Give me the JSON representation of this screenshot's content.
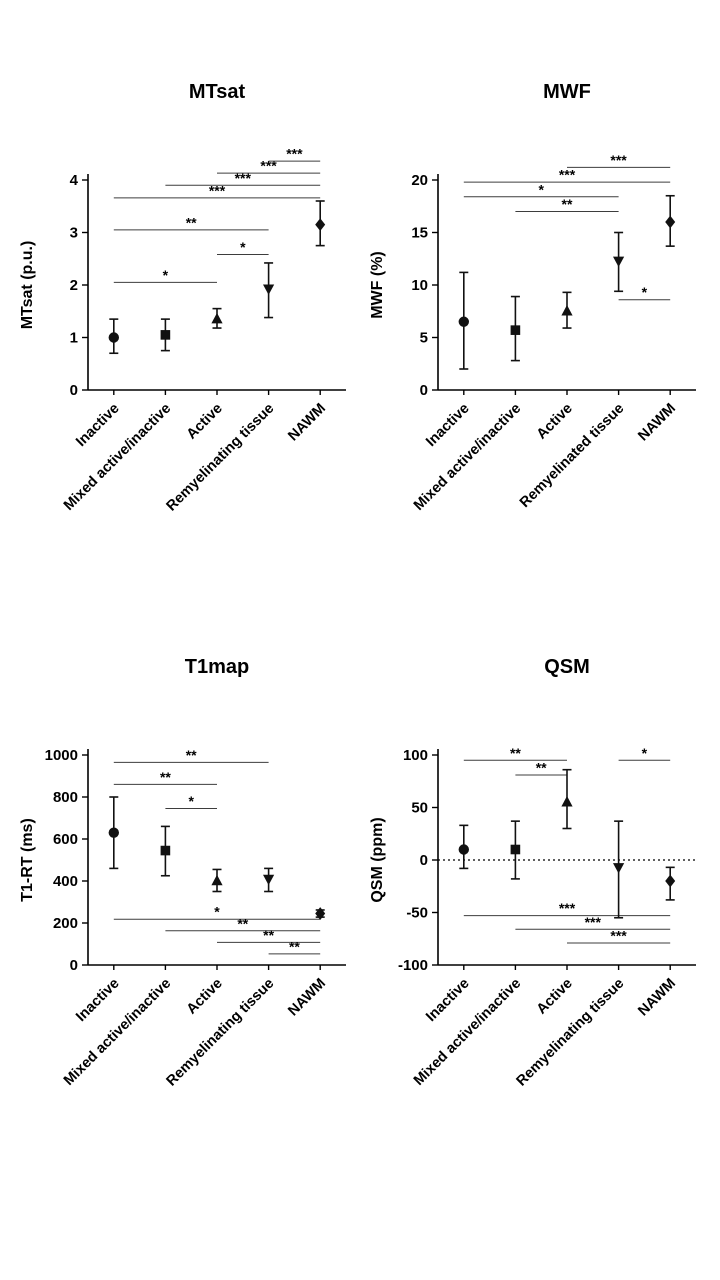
{
  "figure": {
    "background": "#ffffff",
    "marker_color": "#111111",
    "axis_color": "#000000",
    "bracket_color": "#3d3d3d"
  },
  "chart_data": [
    {
      "type": "scatter",
      "title": "MTsat",
      "ylabel": "MTsat (p.u.)",
      "ylim": [
        0,
        4
      ],
      "yticks": [
        0,
        1,
        2,
        3,
        4
      ],
      "grid": false,
      "zero_line": false,
      "categories": [
        "Inactive",
        "Mixed active/inactive",
        "Active",
        "Remyelinating tissue",
        "NAWM"
      ],
      "points": [
        {
          "category": "Inactive",
          "marker": "circle",
          "mean": 1.0,
          "lo": 0.7,
          "hi": 1.35
        },
        {
          "category": "Mixed active/inactive",
          "marker": "square",
          "mean": 1.05,
          "lo": 0.75,
          "hi": 1.35
        },
        {
          "category": "Active",
          "marker": "triangle-up",
          "mean": 1.35,
          "lo": 1.18,
          "hi": 1.55
        },
        {
          "category": "Remyelinating tissue",
          "marker": "triangle-down",
          "mean": 1.93,
          "lo": 1.38,
          "hi": 2.42
        },
        {
          "category": "NAWM",
          "marker": "diamond",
          "mean": 3.15,
          "lo": 2.75,
          "hi": 3.6
        }
      ],
      "brackets": [
        {
          "from": 0,
          "to": 2,
          "label": "*",
          "y": 2.05
        },
        {
          "from": 2,
          "to": 3,
          "label": "*",
          "y": 2.58
        },
        {
          "from": 0,
          "to": 3,
          "label": "**",
          "y": 3.05
        },
        {
          "from": 0,
          "to": 4,
          "label": "***",
          "y": 3.66
        },
        {
          "from": 1,
          "to": 4,
          "label": "***",
          "y": 3.9
        },
        {
          "from": 2,
          "to": 4,
          "label": "***",
          "y": 4.13
        },
        {
          "from": 3,
          "to": 4,
          "label": "***",
          "y": 4.36
        }
      ]
    },
    {
      "type": "scatter",
      "title": "MWF",
      "ylabel": "MWF (%)",
      "ylim": [
        0,
        20
      ],
      "yticks": [
        0,
        5,
        10,
        15,
        20
      ],
      "grid": false,
      "zero_line": false,
      "categories": [
        "Inactive",
        "Mixed active/inactive",
        "Active",
        "Remyelinated tissue",
        "NAWM"
      ],
      "points": [
        {
          "category": "Inactive",
          "marker": "circle",
          "mean": 6.5,
          "lo": 2.0,
          "hi": 11.2
        },
        {
          "category": "Mixed active/inactive",
          "marker": "square",
          "mean": 5.7,
          "lo": 2.8,
          "hi": 8.9
        },
        {
          "category": "Active",
          "marker": "triangle-up",
          "mean": 7.5,
          "lo": 5.9,
          "hi": 9.3
        },
        {
          "category": "Remyelinated tissue",
          "marker": "triangle-down",
          "mean": 12.3,
          "lo": 9.4,
          "hi": 15.0
        },
        {
          "category": "NAWM",
          "marker": "diamond",
          "mean": 16.0,
          "lo": 13.7,
          "hi": 18.5
        }
      ],
      "brackets": [
        {
          "from": 2,
          "to": 4,
          "label": "***",
          "y": 21.2
        },
        {
          "from": 0,
          "to": 4,
          "label": "***",
          "y": 19.8
        },
        {
          "from": 0,
          "to": 3,
          "label": "*",
          "y": 18.4
        },
        {
          "from": 1,
          "to": 3,
          "label": "**",
          "y": 17.0
        },
        {
          "from": 3,
          "to": 4,
          "label": "*",
          "y": 8.6
        }
      ]
    },
    {
      "type": "scatter",
      "title": "T1map",
      "ylabel": "T1-RT (ms)",
      "ylim": [
        0,
        1000
      ],
      "yticks": [
        0,
        200,
        400,
        600,
        800,
        1000
      ],
      "grid": false,
      "zero_line": false,
      "categories": [
        "Inactive",
        "Mixed active/inactive",
        "Active",
        "Remyelinating tissue",
        "NAWM"
      ],
      "points": [
        {
          "category": "Inactive",
          "marker": "circle",
          "mean": 630,
          "lo": 460,
          "hi": 800
        },
        {
          "category": "Mixed active/inactive",
          "marker": "square",
          "mean": 545,
          "lo": 425,
          "hi": 660
        },
        {
          "category": "Active",
          "marker": "triangle-up",
          "mean": 400,
          "lo": 350,
          "hi": 455
        },
        {
          "category": "Remyelinating tissue",
          "marker": "triangle-down",
          "mean": 410,
          "lo": 350,
          "hi": 460
        },
        {
          "category": "NAWM",
          "marker": "diamond",
          "mean": 245,
          "lo": 228,
          "hi": 262
        }
      ],
      "brackets": [
        {
          "from": 0,
          "to": 3,
          "label": "**",
          "y": 965
        },
        {
          "from": 0,
          "to": 2,
          "label": "**",
          "y": 860
        },
        {
          "from": 1,
          "to": 2,
          "label": "*",
          "y": 745
        },
        {
          "from": 0,
          "to": 4,
          "label": "*",
          "y": 218
        },
        {
          "from": 1,
          "to": 4,
          "label": "**",
          "y": 163
        },
        {
          "from": 2,
          "to": 4,
          "label": "**",
          "y": 108
        },
        {
          "from": 3,
          "to": 4,
          "label": "**",
          "y": 53
        }
      ]
    },
    {
      "type": "scatter",
      "title": "QSM",
      "ylabel": "QSM (ppm)",
      "ylim": [
        -100,
        100
      ],
      "yticks": [
        -100,
        -50,
        0,
        50,
        100
      ],
      "grid": false,
      "zero_line": true,
      "categories": [
        "Inactive",
        "Mixed active/inactive",
        "Active",
        "Remyelinating tissue",
        "NAWM"
      ],
      "points": [
        {
          "category": "Inactive",
          "marker": "circle",
          "mean": 10,
          "lo": -8,
          "hi": 33
        },
        {
          "category": "Mixed active/inactive",
          "marker": "square",
          "mean": 10,
          "lo": -18,
          "hi": 37
        },
        {
          "category": "Active",
          "marker": "triangle-up",
          "mean": 55,
          "lo": 30,
          "hi": 86
        },
        {
          "category": "Remyelinating tissue",
          "marker": "triangle-down",
          "mean": -7,
          "lo": -55,
          "hi": 37
        },
        {
          "category": "NAWM",
          "marker": "diamond",
          "mean": -20,
          "lo": -38,
          "hi": -7
        }
      ],
      "brackets": [
        {
          "from": 0,
          "to": 2,
          "label": "**",
          "y": 95
        },
        {
          "from": 1,
          "to": 2,
          "label": "**",
          "y": 81
        },
        {
          "from": 3,
          "to": 4,
          "label": "*",
          "y": 95
        },
        {
          "from": 0,
          "to": 4,
          "label": "***",
          "y": -53
        },
        {
          "from": 1,
          "to": 4,
          "label": "***",
          "y": -66
        },
        {
          "from": 2,
          "to": 4,
          "label": "***",
          "y": -79
        }
      ]
    }
  ]
}
